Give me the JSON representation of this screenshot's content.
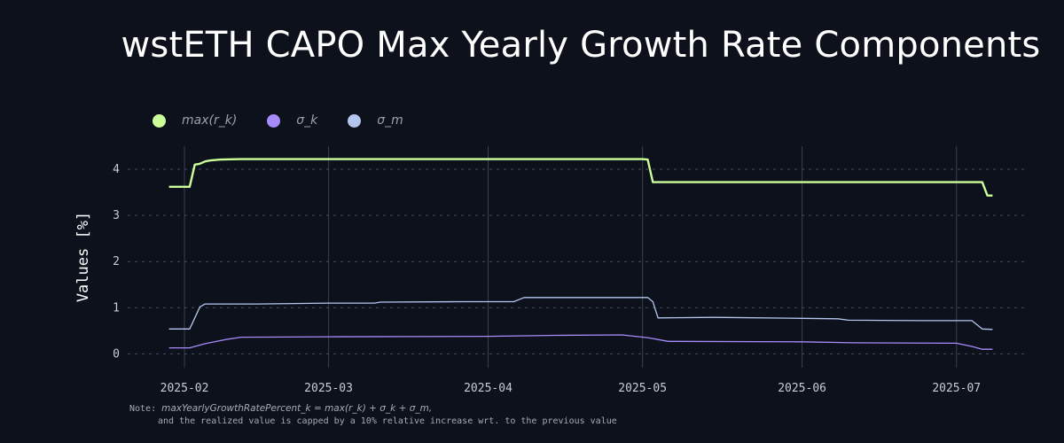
{
  "chart_data": {
    "type": "line",
    "title": "wstETH CAPO Max Yearly Growth Rate Components",
    "ylabel": "Values [%]",
    "xlabel": "",
    "ylim": [
      -0.3,
      4.5
    ],
    "xlim": [
      "2025-01-22",
      "2025-07-15"
    ],
    "grid": {
      "vertical": true,
      "horizontal_dashed": true
    },
    "legend_position": "top-left",
    "yticks": [
      0,
      1,
      2,
      3,
      4
    ],
    "xticks": [
      "2025-02",
      "2025-03",
      "2025-04",
      "2025-05",
      "2025-06",
      "2025-07"
    ],
    "series": [
      {
        "name": "max(r_k)",
        "color": "#ccff99",
        "points": [
          [
            "2025-01-29",
            3.62
          ],
          [
            "2025-02-02",
            3.62
          ],
          [
            "2025-02-03",
            4.1
          ],
          [
            "2025-02-04",
            4.12
          ],
          [
            "2025-02-05",
            4.17
          ],
          [
            "2025-02-06",
            4.19
          ],
          [
            "2025-02-08",
            4.21
          ],
          [
            "2025-02-12",
            4.22
          ],
          [
            "2025-05-01",
            4.22
          ],
          [
            "2025-05-02",
            4.21
          ],
          [
            "2025-05-03",
            3.72
          ],
          [
            "2025-07-06",
            3.72
          ],
          [
            "2025-07-07",
            3.43
          ],
          [
            "2025-07-08",
            3.43
          ]
        ]
      },
      {
        "name": "σ_k",
        "color": "#a78bfa",
        "points": [
          [
            "2025-01-29",
            0.13
          ],
          [
            "2025-02-02",
            0.13
          ],
          [
            "2025-02-05",
            0.22
          ],
          [
            "2025-02-09",
            0.31
          ],
          [
            "2025-02-12",
            0.36
          ],
          [
            "2025-03-01",
            0.37
          ],
          [
            "2025-04-01",
            0.38
          ],
          [
            "2025-04-14",
            0.4
          ],
          [
            "2025-04-27",
            0.41
          ],
          [
            "2025-05-02",
            0.35
          ],
          [
            "2025-05-06",
            0.27
          ],
          [
            "2025-06-01",
            0.26
          ],
          [
            "2025-06-11",
            0.24
          ],
          [
            "2025-07-01",
            0.23
          ],
          [
            "2025-07-04",
            0.16
          ],
          [
            "2025-07-06",
            0.1
          ],
          [
            "2025-07-08",
            0.1
          ]
        ]
      },
      {
        "name": "σ_m",
        "color": "#b4c6f0",
        "points": [
          [
            "2025-01-29",
            0.54
          ],
          [
            "2025-02-02",
            0.54
          ],
          [
            "2025-02-04",
            1.02
          ],
          [
            "2025-02-05",
            1.08
          ],
          [
            "2025-02-15",
            1.08
          ],
          [
            "2025-03-01",
            1.1
          ],
          [
            "2025-03-10",
            1.1
          ],
          [
            "2025-03-11",
            1.12
          ],
          [
            "2025-03-27",
            1.13
          ],
          [
            "2025-04-06",
            1.13
          ],
          [
            "2025-04-08",
            1.22
          ],
          [
            "2025-04-23",
            1.22
          ],
          [
            "2025-05-02",
            1.22
          ],
          [
            "2025-05-03",
            1.13
          ],
          [
            "2025-05-04",
            0.78
          ],
          [
            "2025-05-15",
            0.79
          ],
          [
            "2025-06-01",
            0.77
          ],
          [
            "2025-06-08",
            0.76
          ],
          [
            "2025-06-10",
            0.73
          ],
          [
            "2025-06-25",
            0.72
          ],
          [
            "2025-07-04",
            0.72
          ],
          [
            "2025-07-06",
            0.54
          ],
          [
            "2025-07-08",
            0.53
          ]
        ]
      }
    ]
  },
  "legend": {
    "items": [
      {
        "label": "max(r_k)",
        "color": "#ccff99"
      },
      {
        "label": "σ_k",
        "color": "#a78bfa"
      },
      {
        "label": "σ_m",
        "color": "#b4c6f0"
      }
    ]
  },
  "note": {
    "prefix": "Note:",
    "formula": "maxYearlyGrowthRatePercent_k = max(r_k) + σ_k + σ_m,",
    "line2": "and the realized value is capped by a 10% relative increase wrt. to the previous value"
  }
}
